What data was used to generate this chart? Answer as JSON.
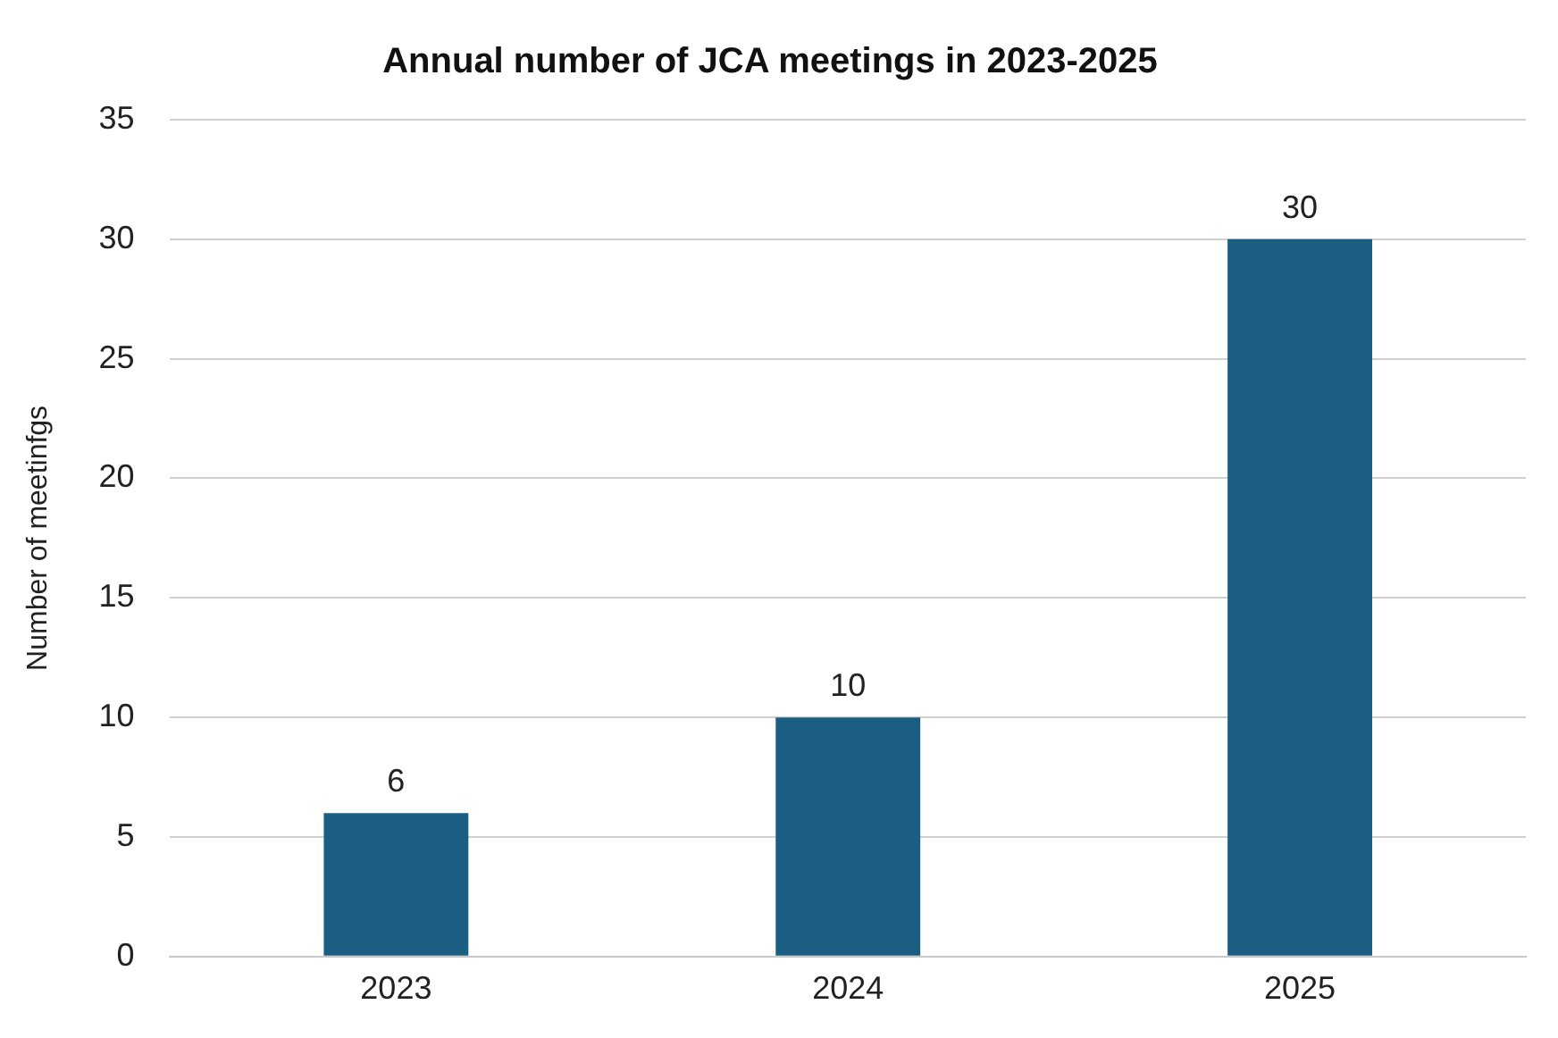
{
  "chart_data": {
    "type": "bar",
    "title": "Annual number of JCA meetings in 2023-2025",
    "ylabel": "Number of meetinfgs",
    "categories": [
      "2023",
      "2024",
      "2025"
    ],
    "values": [
      6,
      10,
      30
    ],
    "color": "#1a5f82",
    "ylim": [
      0,
      35
    ],
    "yticks": [
      0,
      5,
      10,
      15,
      20,
      25,
      30,
      35
    ],
    "grid": "y",
    "data_labels": true
  }
}
